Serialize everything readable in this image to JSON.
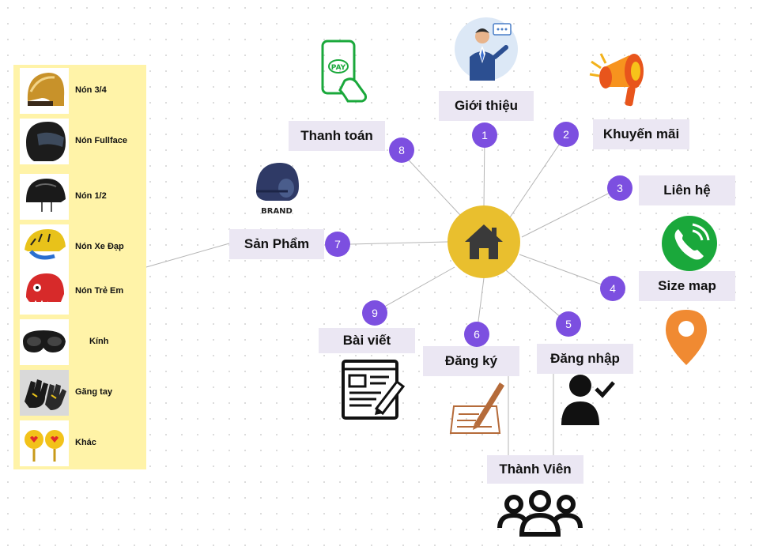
{
  "hub": {
    "icon": "home-icon",
    "color": "#e9bf2e"
  },
  "nodes": {
    "gioi_thieu": {
      "label": "Giới thiệu",
      "badge": "1"
    },
    "khuyen_mai": {
      "label": "Khuyến mãi",
      "badge": "2"
    },
    "lien_he": {
      "label": "Liên hệ",
      "badge": "3"
    },
    "size_map": {
      "label": "Size map",
      "badge": "4"
    },
    "dang_nhap": {
      "label": "Đăng nhập",
      "badge": "5"
    },
    "dang_ky": {
      "label": "Đăng ký",
      "badge": "6"
    },
    "san_pham": {
      "label": "Sản Phẩm",
      "badge": "7"
    },
    "thanh_toan": {
      "label": "Thanh toán",
      "badge": "8"
    },
    "bai_viet": {
      "label": "Bài viết",
      "badge": "9"
    },
    "thanh_vien": {
      "label": "Thành Viên"
    }
  },
  "icons": {
    "pay_text": "PAY",
    "brand_text": "BRAND"
  },
  "products": [
    {
      "label": "Nón 3/4",
      "icon": "helmet-3-4-icon"
    },
    {
      "label": "Nón Fullface",
      "icon": "helmet-fullface-icon"
    },
    {
      "label": "Nón 1/2",
      "icon": "helmet-half-icon"
    },
    {
      "label": "Nón Xe Đạp",
      "icon": "bike-helmet-icon"
    },
    {
      "label": "Nón Trẻ Em",
      "icon": "kids-helmet-icon"
    },
    {
      "label": "Kính",
      "icon": "goggles-icon"
    },
    {
      "label": "Găng tay",
      "icon": "gloves-icon"
    },
    {
      "label": "Khác",
      "icon": "other-icon"
    }
  ],
  "colors": {
    "label_bg": "#ebe7f3",
    "badge": "#7c4fe0",
    "panel": "#fff3a8",
    "phone": "#1aa83b",
    "pin": "#f08a32",
    "edit": "#b56b3a"
  }
}
